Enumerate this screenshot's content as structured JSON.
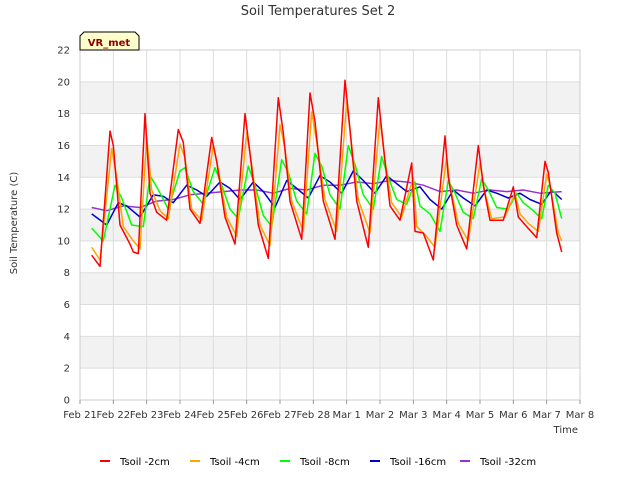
{
  "chart_data": {
    "type": "line",
    "title": "Soil Temperatures Set 2",
    "xlabel": "Time",
    "ylabel": "Soil Temperature (C)",
    "badge": "VR_met",
    "ylim": [
      0,
      22
    ],
    "yticks": [
      0,
      2,
      4,
      6,
      8,
      10,
      12,
      14,
      16,
      18,
      20,
      22
    ],
    "xlim": [
      0,
      15
    ],
    "xtick_labels": [
      "Feb 21",
      "Feb 22",
      "Feb 23",
      "Feb 24",
      "Feb 25",
      "Feb 26",
      "Feb 27",
      "Feb 28",
      "Mar 1",
      "Mar 2",
      "Mar 3",
      "Mar 4",
      "Mar 5",
      "Mar 6",
      "Mar 7",
      "Mar 8"
    ],
    "grid": true,
    "legend_position": "bottom",
    "series": [
      {
        "name": "Tsoil -2cm",
        "color": "#ff0000",
        "points": [
          [
            0.35,
            9.1
          ],
          [
            0.6,
            8.4
          ],
          [
            0.9,
            16.9
          ],
          [
            1.0,
            16.0
          ],
          [
            1.2,
            11.0
          ],
          [
            1.5,
            9.8
          ],
          [
            1.6,
            9.3
          ],
          [
            1.75,
            9.2
          ],
          [
            1.95,
            18.0
          ],
          [
            2.1,
            13.0
          ],
          [
            2.3,
            11.8
          ],
          [
            2.6,
            11.3
          ],
          [
            2.95,
            17.0
          ],
          [
            3.1,
            16.2
          ],
          [
            3.3,
            12.0
          ],
          [
            3.6,
            11.1
          ],
          [
            3.95,
            16.5
          ],
          [
            4.1,
            15.0
          ],
          [
            4.35,
            11.5
          ],
          [
            4.65,
            9.8
          ],
          [
            4.95,
            18.0
          ],
          [
            5.1,
            15.5
          ],
          [
            5.35,
            11.0
          ],
          [
            5.65,
            8.9
          ],
          [
            5.95,
            19.0
          ],
          [
            6.1,
            16.8
          ],
          [
            6.3,
            12.5
          ],
          [
            6.65,
            10.1
          ],
          [
            6.9,
            19.3
          ],
          [
            7.05,
            17.5
          ],
          [
            7.3,
            12.5
          ],
          [
            7.65,
            10.1
          ],
          [
            7.95,
            20.1
          ],
          [
            8.1,
            17.0
          ],
          [
            8.3,
            12.5
          ],
          [
            8.65,
            9.6
          ],
          [
            8.95,
            19.0
          ],
          [
            9.1,
            16.0
          ],
          [
            9.3,
            12.2
          ],
          [
            9.6,
            11.3
          ],
          [
            9.95,
            14.9
          ],
          [
            10.05,
            10.6
          ],
          [
            10.3,
            10.5
          ],
          [
            10.6,
            8.8
          ],
          [
            10.95,
            16.6
          ],
          [
            11.05,
            14.0
          ],
          [
            11.3,
            11.0
          ],
          [
            11.6,
            9.5
          ],
          [
            11.95,
            16.0
          ],
          [
            12.1,
            13.5
          ],
          [
            12.3,
            11.3
          ],
          [
            12.7,
            11.3
          ],
          [
            13.0,
            13.4
          ],
          [
            13.15,
            11.5
          ],
          [
            13.4,
            10.9
          ],
          [
            13.7,
            10.2
          ],
          [
            13.95,
            15.0
          ],
          [
            14.05,
            14.3
          ],
          [
            14.3,
            10.5
          ],
          [
            14.45,
            9.3
          ]
        ]
      },
      {
        "name": "Tsoil -4cm",
        "color": "#ffa500",
        "points": [
          [
            0.35,
            9.6
          ],
          [
            0.6,
            8.8
          ],
          [
            0.95,
            15.8
          ],
          [
            1.1,
            14.0
          ],
          [
            1.3,
            10.9
          ],
          [
            1.6,
            10.0
          ],
          [
            1.8,
            9.5
          ],
          [
            2.0,
            16.5
          ],
          [
            2.15,
            13.2
          ],
          [
            2.4,
            11.9
          ],
          [
            2.65,
            11.4
          ],
          [
            3.0,
            16.1
          ],
          [
            3.15,
            15.2
          ],
          [
            3.35,
            12.0
          ],
          [
            3.65,
            11.3
          ],
          [
            4.0,
            16.0
          ],
          [
            4.15,
            14.5
          ],
          [
            4.4,
            11.5
          ],
          [
            4.7,
            10.3
          ],
          [
            5.0,
            16.8
          ],
          [
            5.15,
            14.8
          ],
          [
            5.4,
            11.0
          ],
          [
            5.7,
            9.7
          ],
          [
            6.0,
            17.3
          ],
          [
            6.15,
            15.8
          ],
          [
            6.35,
            12.5
          ],
          [
            6.7,
            10.6
          ],
          [
            6.95,
            18.1
          ],
          [
            7.1,
            16.2
          ],
          [
            7.35,
            12.6
          ],
          [
            7.7,
            10.6
          ],
          [
            8.0,
            18.7
          ],
          [
            8.15,
            16.0
          ],
          [
            8.35,
            12.6
          ],
          [
            8.7,
            10.5
          ],
          [
            9.0,
            17.7
          ],
          [
            9.15,
            15.0
          ],
          [
            9.35,
            12.4
          ],
          [
            9.65,
            11.5
          ],
          [
            10.0,
            14.0
          ],
          [
            10.1,
            10.9
          ],
          [
            10.35,
            10.4
          ],
          [
            10.65,
            9.6
          ],
          [
            11.0,
            15.3
          ],
          [
            11.1,
            13.5
          ],
          [
            11.35,
            11.1
          ],
          [
            11.65,
            10.0
          ],
          [
            12.0,
            14.9
          ],
          [
            12.15,
            13.0
          ],
          [
            12.35,
            11.4
          ],
          [
            12.75,
            11.5
          ],
          [
            13.05,
            13.0
          ],
          [
            13.2,
            11.7
          ],
          [
            13.45,
            11.1
          ],
          [
            13.75,
            10.6
          ],
          [
            14.0,
            14.2
          ],
          [
            14.1,
            13.5
          ],
          [
            14.35,
            10.5
          ],
          [
            14.45,
            10.0
          ]
        ]
      },
      {
        "name": "Tsoil -8cm",
        "color": "#00ff00",
        "points": [
          [
            0.35,
            10.8
          ],
          [
            0.7,
            10.0
          ],
          [
            1.05,
            13.5
          ],
          [
            1.25,
            12.7
          ],
          [
            1.55,
            11.0
          ],
          [
            1.9,
            10.9
          ],
          [
            2.1,
            14.1
          ],
          [
            2.3,
            13.4
          ],
          [
            2.65,
            12.0
          ],
          [
            3.0,
            14.4
          ],
          [
            3.15,
            14.6
          ],
          [
            3.4,
            13.1
          ],
          [
            3.7,
            12.3
          ],
          [
            4.05,
            14.6
          ],
          [
            4.25,
            13.5
          ],
          [
            4.5,
            12.0
          ],
          [
            4.75,
            11.4
          ],
          [
            5.05,
            14.7
          ],
          [
            5.25,
            13.5
          ],
          [
            5.5,
            11.6
          ],
          [
            5.75,
            10.9
          ],
          [
            6.05,
            15.1
          ],
          [
            6.25,
            14.3
          ],
          [
            6.5,
            12.5
          ],
          [
            6.8,
            11.7
          ],
          [
            7.05,
            15.5
          ],
          [
            7.25,
            14.7
          ],
          [
            7.5,
            12.9
          ],
          [
            7.8,
            12.0
          ],
          [
            8.05,
            16.0
          ],
          [
            8.25,
            14.8
          ],
          [
            8.5,
            12.9
          ],
          [
            8.8,
            12.0
          ],
          [
            9.05,
            15.3
          ],
          [
            9.25,
            14.0
          ],
          [
            9.5,
            12.6
          ],
          [
            9.8,
            12.3
          ],
          [
            10.05,
            13.7
          ],
          [
            10.2,
            12.2
          ],
          [
            10.5,
            11.7
          ],
          [
            10.8,
            10.6
          ],
          [
            11.05,
            13.8
          ],
          [
            11.25,
            13.0
          ],
          [
            11.5,
            11.8
          ],
          [
            11.8,
            11.4
          ],
          [
            12.05,
            13.9
          ],
          [
            12.25,
            13.2
          ],
          [
            12.5,
            12.1
          ],
          [
            12.85,
            12.0
          ],
          [
            13.1,
            13.0
          ],
          [
            13.3,
            12.4
          ],
          [
            13.6,
            11.9
          ],
          [
            13.85,
            11.4
          ],
          [
            14.05,
            13.5
          ],
          [
            14.25,
            13.0
          ],
          [
            14.45,
            11.4
          ]
        ]
      },
      {
        "name": "Tsoil -16cm",
        "color": "#0000cd",
        "points": [
          [
            0.35,
            11.7
          ],
          [
            0.8,
            11.0
          ],
          [
            1.15,
            12.4
          ],
          [
            1.4,
            12.2
          ],
          [
            1.8,
            11.5
          ],
          [
            2.2,
            12.9
          ],
          [
            2.5,
            12.8
          ],
          [
            2.8,
            12.4
          ],
          [
            3.2,
            13.5
          ],
          [
            3.5,
            13.2
          ],
          [
            3.8,
            12.8
          ],
          [
            4.2,
            13.7
          ],
          [
            4.5,
            13.3
          ],
          [
            4.8,
            12.6
          ],
          [
            5.2,
            13.7
          ],
          [
            5.5,
            13.1
          ],
          [
            5.85,
            12.1
          ],
          [
            6.2,
            13.8
          ],
          [
            6.5,
            13.3
          ],
          [
            6.85,
            12.7
          ],
          [
            7.2,
            14.1
          ],
          [
            7.5,
            13.7
          ],
          [
            7.85,
            13.0
          ],
          [
            8.2,
            14.4
          ],
          [
            8.5,
            13.8
          ],
          [
            8.85,
            13.0
          ],
          [
            9.2,
            14.1
          ],
          [
            9.5,
            13.6
          ],
          [
            9.8,
            13.1
          ],
          [
            10.2,
            13.4
          ],
          [
            10.5,
            12.6
          ],
          [
            10.85,
            12.0
          ],
          [
            11.2,
            13.2
          ],
          [
            11.5,
            12.7
          ],
          [
            11.85,
            12.2
          ],
          [
            12.2,
            13.2
          ],
          [
            12.5,
            13.0
          ],
          [
            12.85,
            12.7
          ],
          [
            13.2,
            13.0
          ],
          [
            13.5,
            12.6
          ],
          [
            13.85,
            12.3
          ],
          [
            14.15,
            13.2
          ],
          [
            14.45,
            12.6
          ]
        ]
      },
      {
        "name": "Tsoil -32cm",
        "color": "#9932cc",
        "points": [
          [
            0.35,
            12.1
          ],
          [
            0.8,
            11.9
          ],
          [
            1.3,
            12.2
          ],
          [
            1.8,
            12.1
          ],
          [
            2.3,
            12.5
          ],
          [
            2.8,
            12.6
          ],
          [
            3.3,
            12.9
          ],
          [
            3.8,
            13.0
          ],
          [
            4.3,
            13.1
          ],
          [
            4.8,
            13.2
          ],
          [
            5.3,
            13.2
          ],
          [
            5.8,
            13.0
          ],
          [
            6.3,
            13.3
          ],
          [
            6.8,
            13.2
          ],
          [
            7.3,
            13.5
          ],
          [
            7.8,
            13.5
          ],
          [
            8.3,
            13.7
          ],
          [
            8.8,
            13.6
          ],
          [
            9.3,
            13.8
          ],
          [
            9.8,
            13.7
          ],
          [
            10.3,
            13.5
          ],
          [
            10.8,
            13.1
          ],
          [
            11.3,
            13.2
          ],
          [
            11.8,
            13.0
          ],
          [
            12.3,
            13.2
          ],
          [
            12.8,
            13.1
          ],
          [
            13.3,
            13.2
          ],
          [
            13.8,
            13.0
          ],
          [
            14.45,
            13.1
          ]
        ]
      }
    ]
  }
}
